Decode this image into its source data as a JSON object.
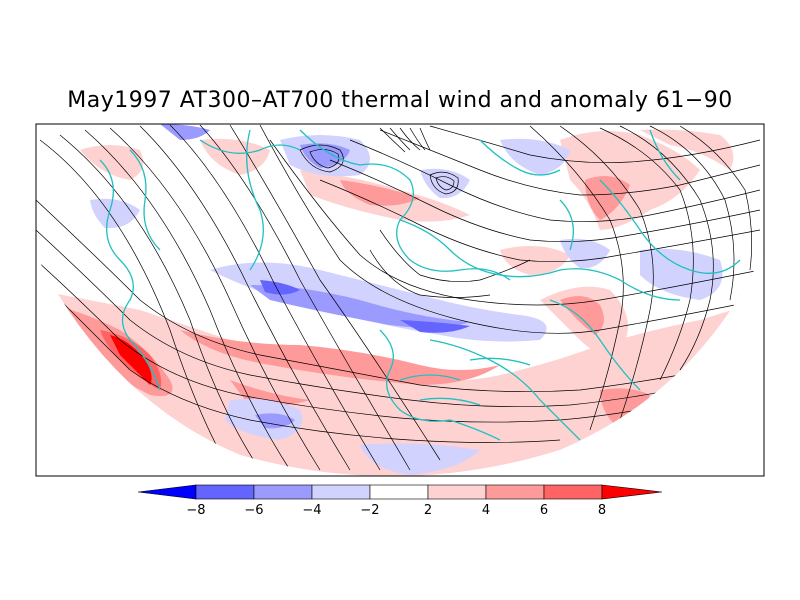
{
  "figure": {
    "title": "May1997 AT300–AT700 thermal wind and anomaly 61−90"
  },
  "colorbar": {
    "labels": [
      "−8",
      "−6",
      "−4",
      "−2",
      "2",
      "4",
      "6",
      "8"
    ],
    "colors": [
      "#0000ff",
      "#6464ff",
      "#9a9aff",
      "#d2d2ff",
      "#ffffff",
      "#ffd2d2",
      "#ff9a9a",
      "#ff6464",
      "#ff0000"
    ]
  },
  "map": {
    "projection": "polar-stereographic-northern-hemisphere",
    "contour_color": "#000000",
    "coastline_color": "#20c0c0",
    "field": "thermal-wind-streamlines",
    "shading": "anomaly"
  }
}
